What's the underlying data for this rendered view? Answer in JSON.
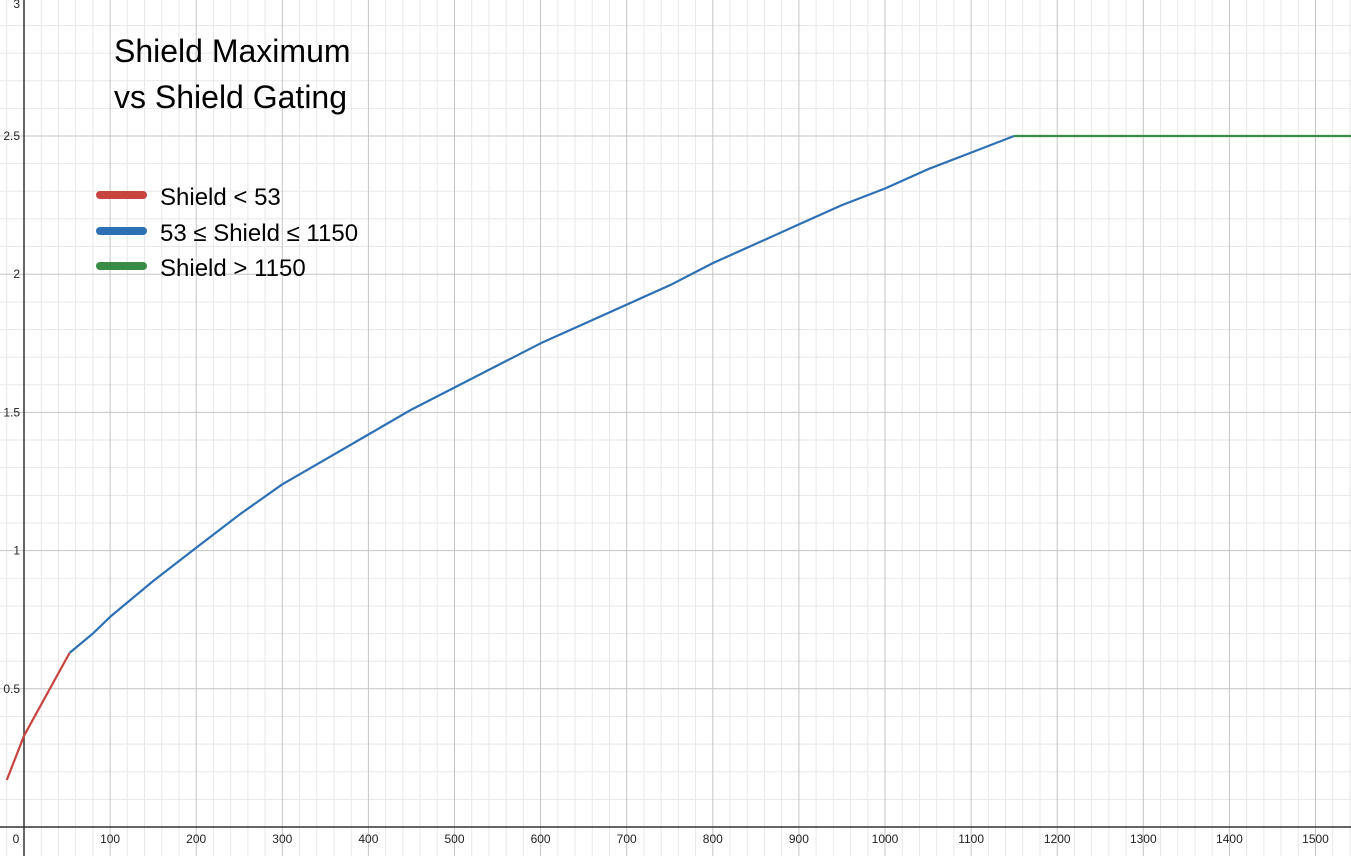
{
  "chart_data": {
    "type": "line",
    "title_lines": [
      "Shield Maximum",
      "vs Shield Gating"
    ],
    "xlabel": "",
    "ylabel": "",
    "xlim": [
      -20,
      1550
    ],
    "ylim": [
      0,
      3
    ],
    "x_ticks": [
      0,
      100,
      200,
      300,
      400,
      500,
      600,
      700,
      800,
      900,
      1000,
      1100,
      1200,
      1300,
      1400,
      1500
    ],
    "y_ticks": [
      0.5,
      1,
      1.5,
      2,
      2.5,
      3
    ],
    "x_tick_labels": [
      "0",
      "100",
      "200",
      "300",
      "400",
      "500",
      "600",
      "700",
      "800",
      "900",
      "1000",
      "1100",
      "1200",
      "1300",
      "1400",
      "1500"
    ],
    "y_tick_labels": [
      "0.5",
      "1",
      "1.5",
      "2",
      "2.5",
      "3"
    ],
    "grid": true,
    "minor_grid_step_x": 20,
    "minor_grid_step_y": 0.1,
    "legend_position": "top-left",
    "series": [
      {
        "name": "Shield < 53",
        "color": "#c74440",
        "points": [
          [
            -20,
            0.17
          ],
          [
            0,
            0.33
          ],
          [
            53,
            0.63
          ]
        ]
      },
      {
        "name": "53 ≤ Shield ≤ 1150",
        "color": "#2d70b3",
        "points": [
          [
            53,
            0.63
          ],
          [
            80,
            0.7
          ],
          [
            100,
            0.76
          ],
          [
            150,
            0.89
          ],
          [
            200,
            1.01
          ],
          [
            250,
            1.13
          ],
          [
            300,
            1.24
          ],
          [
            350,
            1.33
          ],
          [
            400,
            1.42
          ],
          [
            450,
            1.51
          ],
          [
            500,
            1.59
          ],
          [
            550,
            1.67
          ],
          [
            600,
            1.75
          ],
          [
            650,
            1.82
          ],
          [
            700,
            1.89
          ],
          [
            750,
            1.96
          ],
          [
            800,
            2.04
          ],
          [
            850,
            2.11
          ],
          [
            900,
            2.18
          ],
          [
            950,
            2.25
          ],
          [
            1000,
            2.31
          ],
          [
            1050,
            2.38
          ],
          [
            1100,
            2.44
          ],
          [
            1150,
            2.5
          ]
        ]
      },
      {
        "name": "Shield > 1150",
        "color": "#388c46",
        "points": [
          [
            1150,
            2.5
          ],
          [
            1550,
            2.5
          ]
        ]
      }
    ]
  }
}
